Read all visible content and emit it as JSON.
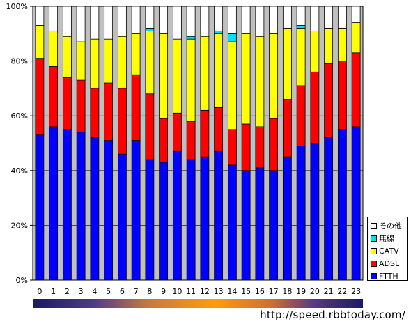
{
  "chart_data": {
    "type": "bar",
    "stacked": true,
    "percent": true,
    "categories": [
      "0",
      "1",
      "2",
      "3",
      "4",
      "5",
      "6",
      "7",
      "8",
      "9",
      "10",
      "11",
      "12",
      "13",
      "14",
      "15",
      "16",
      "17",
      "18",
      "19",
      "20",
      "21",
      "22",
      "23"
    ],
    "ylim": [
      0,
      100
    ],
    "yticks": [
      "0%",
      "20%",
      "40%",
      "60%",
      "80%",
      "100%"
    ],
    "grid": true,
    "legend_position": "right-bottom",
    "series": [
      {
        "name": "FTTH",
        "color": "#0000ff",
        "values": [
          53,
          56,
          55,
          54,
          52,
          51,
          46,
          51,
          44,
          43,
          47,
          44,
          45,
          47,
          42,
          40,
          41,
          40,
          45,
          49,
          50,
          52,
          55,
          56
        ]
      },
      {
        "name": "ADSL",
        "color": "#ff0000",
        "values": [
          28,
          22,
          19,
          19,
          18,
          21,
          24,
          24,
          24,
          16,
          14,
          14,
          17,
          16,
          13,
          17,
          15,
          19,
          21,
          22,
          26,
          27,
          25,
          27
        ]
      },
      {
        "name": "CATV",
        "color": "#ffff00",
        "values": [
          12,
          13,
          15,
          14,
          18,
          16,
          19,
          15,
          23,
          31,
          27,
          30,
          27,
          27,
          32,
          33,
          33,
          31,
          26,
          21,
          15,
          13,
          12,
          11
        ]
      },
      {
        "name": "無線",
        "color": "#00e0ff",
        "values": [
          0,
          0,
          0,
          0,
          0,
          0,
          0,
          0,
          1,
          0,
          0,
          1,
          0,
          1,
          3,
          0,
          0,
          0,
          0,
          1,
          0,
          0,
          0,
          0
        ]
      },
      {
        "name": "その他",
        "color": "#ffffff",
        "values": [
          7,
          9,
          11,
          13,
          12,
          12,
          11,
          10,
          8,
          10,
          12,
          11,
          11,
          9,
          10,
          10,
          11,
          10,
          8,
          7,
          9,
          8,
          8,
          6
        ]
      }
    ]
  },
  "legend_order": [
    "その他",
    "無線",
    "CATV",
    "ADSL",
    "FTTH"
  ],
  "footer": {
    "url": "http://speed.rbbtoday.com/"
  }
}
